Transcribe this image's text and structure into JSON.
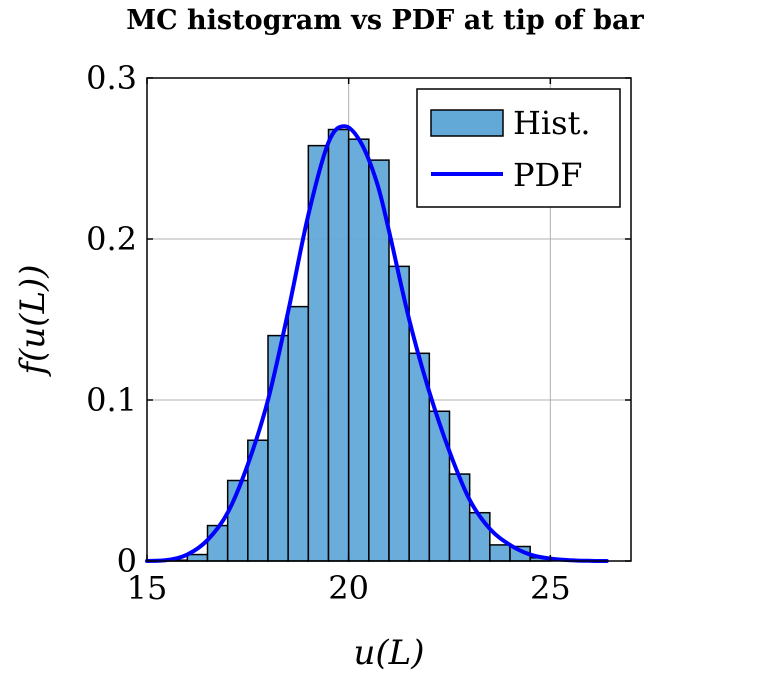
{
  "chart_data": {
    "type": "bar",
    "title": "MC histogram vs PDF at tip of bar",
    "xlabel": "u(L)",
    "ylabel": "f(u(L))",
    "xlim": [
      15,
      27
    ],
    "ylim": [
      0,
      0.3
    ],
    "xticks": [
      15,
      20,
      25
    ],
    "xtick_labels": [
      "15",
      "20",
      "25"
    ],
    "yticks": [
      0,
      0.1,
      0.2,
      0.3
    ],
    "ytick_labels": [
      "0",
      "0.1",
      "0.2",
      "0.3"
    ],
    "grid": true,
    "legend_position": "top-right",
    "colors": {
      "hist_fill": "#62a9d8",
      "hist_edge": "#000000",
      "pdf_line": "#0000ff",
      "grid": "#b0b0b0"
    },
    "series": [
      {
        "name": "Hist.",
        "kind": "histogram",
        "bin_edges": [
          15.5,
          16.0,
          16.5,
          17.0,
          17.5,
          18.0,
          18.5,
          19.0,
          19.5,
          20.0,
          20.5,
          21.0,
          21.5,
          22.0,
          22.5,
          23.0,
          23.5,
          24.0,
          24.5,
          25.0
        ],
        "values": [
          0.0005,
          0.004,
          0.022,
          0.05,
          0.075,
          0.14,
          0.158,
          0.258,
          0.268,
          0.262,
          0.249,
          0.183,
          0.129,
          0.093,
          0.054,
          0.03,
          0.01,
          0.009,
          0.002
        ]
      },
      {
        "name": "PDF",
        "kind": "line",
        "x": [
          15.0,
          15.5,
          16.0,
          16.5,
          17.0,
          17.5,
          18.0,
          18.5,
          19.0,
          19.5,
          19.9,
          20.3,
          20.7,
          21.0,
          21.5,
          22.0,
          22.5,
          23.0,
          23.5,
          24.0,
          24.5,
          25.0,
          25.5,
          26.0,
          26.4
        ],
        "y": [
          0.0,
          0.0006,
          0.004,
          0.013,
          0.03,
          0.06,
          0.1,
          0.155,
          0.215,
          0.26,
          0.27,
          0.26,
          0.235,
          0.205,
          0.15,
          0.105,
          0.068,
          0.038,
          0.02,
          0.01,
          0.004,
          0.0015,
          0.0005,
          0.0001,
          0.0
        ]
      }
    ]
  }
}
